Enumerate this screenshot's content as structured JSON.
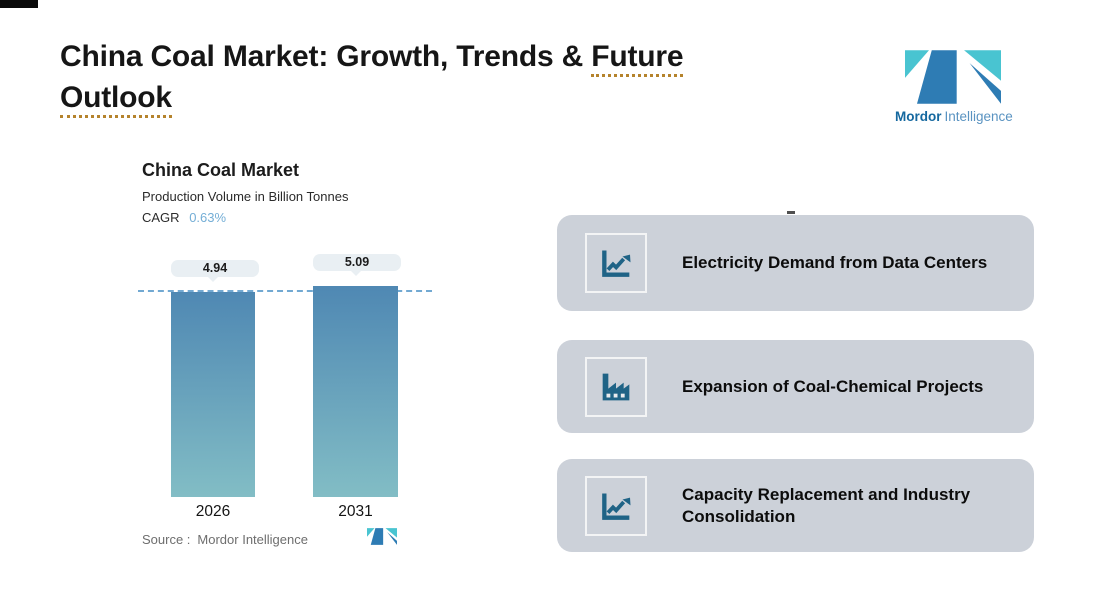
{
  "header": {
    "title_plain": "China Coal Market: Growth, Trends &",
    "word_future": "Future",
    "word_outlook": "Outlook",
    "underline_color": "#b5832c"
  },
  "brand": {
    "name_bold": "Mordor",
    "name_light": "Intelligence",
    "logo_teal": "#49c4d1",
    "logo_blue": "#2e7cb4"
  },
  "chart": {
    "source_label": "Source :",
    "source_value": "Mordor Intelligence"
  },
  "chart_data": {
    "type": "bar",
    "title": "China Coal Market",
    "subtitle": "Production Volume in Billion Tonnes",
    "cagr_label": "CAGR",
    "cagr_value": "0.63%",
    "categories": [
      "2026",
      "2031"
    ],
    "values": [
      4.94,
      5.09
    ],
    "value_labels": [
      "4.94",
      "5.09"
    ],
    "reference_line_value": 4.94,
    "grid": false,
    "legend": false,
    "bar_gradient_top": "#4f88b3",
    "bar_gradient_bottom": "#82bdc5",
    "dashed_line_color": "#72a9d2"
  },
  "cards": [
    {
      "label": "Electricity Demand from Data Centers",
      "icon": "chart-increasing-icon",
      "bg": "#ccd1d9",
      "icon_color": "#1f6386"
    },
    {
      "label": "Expansion of Coal-Chemical Projects",
      "icon": "factory-icon",
      "bg": "#ccd1d9",
      "icon_color": "#1f6386"
    },
    {
      "label": "Capacity Replacement and Industry Consolidation",
      "icon": "chart-increasing-icon",
      "bg": "#ccd1d9",
      "icon_color": "#1f6386"
    }
  ]
}
